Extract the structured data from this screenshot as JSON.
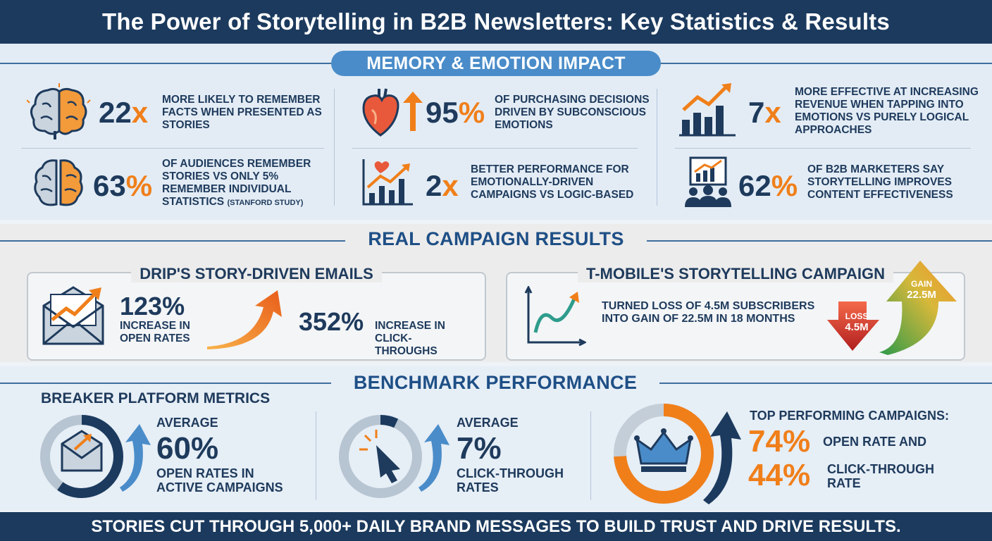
{
  "header": {
    "title": "The Power of Storytelling in B2B Newsletters: Key Statistics & Results"
  },
  "memory": {
    "heading": "MEMORY & EMOTION IMPACT",
    "stats": [
      {
        "num": "22",
        "unit": "x",
        "text": "MORE LIKELY TO REMEMBER FACTS WHEN PRESENTED AS STORIES",
        "icon": "brain-icon"
      },
      {
        "num": "95",
        "unit": "%",
        "text": "OF PURCHASING DECISIONS DRIVEN BY SUBCONSCIOUS EMOTIONS",
        "icon": "heart-icon"
      },
      {
        "num": "7",
        "unit": "x",
        "text": "MORE EFFECTIVE AT INCREASING REVENUE WHEN TAPPING INTO EMOTIONS VS PURELY LOGICAL APPROACHES",
        "icon": "bar-chart-icon"
      },
      {
        "num": "63",
        "unit": "%",
        "text": "OF AUDIENCES REMEMBER STORIES VS ONLY 5% REMEMBER INDIVIDUAL STATISTICS",
        "note": "(STANFORD STUDY)",
        "icon": "brain-halves-icon"
      },
      {
        "num": "2",
        "unit": "x",
        "text": "BETTER PERFORMANCE FOR EMOTIONALLY-DRIVEN CAMPAIGNS VS LOGIC-BASED",
        "icon": "heart-chart-icon"
      },
      {
        "num": "62",
        "unit": "%",
        "text": "OF B2B MARKETERS SAY STORYTELLING IMPROVES CONTENT EFFECTIVENESS",
        "icon": "audience-icon"
      }
    ]
  },
  "campaigns": {
    "heading": "REAL CAMPAIGN RESULTS",
    "drip": {
      "title": "DRIP'S STORY-DRIVEN EMAILS",
      "stat1": "123%",
      "stat1_text": "INCREASE IN OPEN RATES",
      "stat2": "352%",
      "stat2_text": "INCREASE IN CLICK-THROUGHS"
    },
    "tmobile": {
      "title": "T-MOBILE'S STORYTELLING CAMPAIGN",
      "text": "TURNED LOSS OF 4.5M SUBSCRIBERS INTO GAIN OF 22.5M IN 18 MONTHS",
      "loss_label": "LOSS",
      "loss_value": "4.5M",
      "gain_label": "GAIN",
      "gain_value": "22.5M"
    }
  },
  "benchmark": {
    "heading": "BENCHMARK PERFORMANCE",
    "subheading": "BREAKER PLATFORM METRICS",
    "open": {
      "label": "AVERAGE",
      "value": "60%",
      "text": "OPEN RATES IN ACTIVE CAMPAIGNS",
      "fraction": 0.6
    },
    "click": {
      "label": "AVERAGE",
      "value": "7%",
      "text": "CLICK-THROUGH RATES",
      "fraction": 0.07
    },
    "top": {
      "title": "TOP PERFORMING CAMPAIGNS:",
      "open_value": "74%",
      "open_text": "OPEN RATE AND",
      "click_value": "44%",
      "click_text": "CLICK-THROUGH RATE",
      "fraction": 0.74
    }
  },
  "footer": {
    "text": "STORIES CUT THROUGH 5,000+ DAILY BRAND MESSAGES TO BUILD TRUST AND DRIVE RESULTS."
  },
  "colors": {
    "navy": "#1b3a5e",
    "accent": "#f07f1a",
    "blue": "#4a8cc9"
  }
}
